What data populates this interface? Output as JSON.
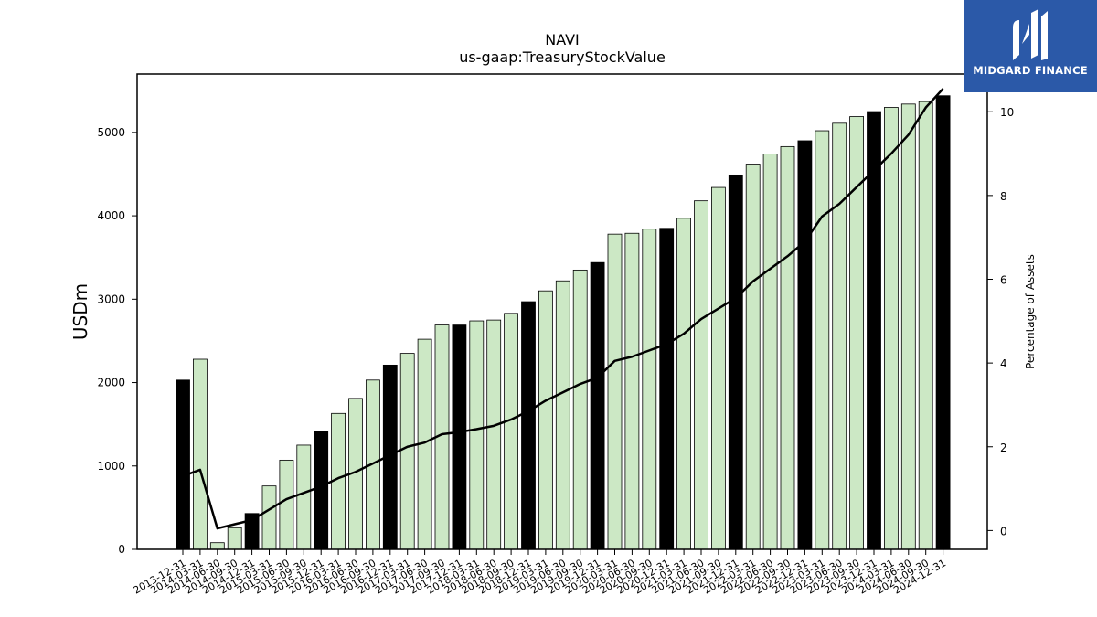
{
  "chart_data": {
    "type": "bar",
    "title": "NAVI",
    "subtitle": "us-gaap:TreasuryStockValue",
    "ylabel": "USDm",
    "y2label": "Percentage of Assets",
    "ylim": [
      0,
      5700
    ],
    "y2lim": [
      -0.45,
      10.9
    ],
    "yticks": [
      0,
      1000,
      2000,
      3000,
      4000,
      5000
    ],
    "y2ticks": [
      0,
      2,
      4,
      6,
      8,
      10
    ],
    "categories": [
      "2013-12-31",
      "2014-03-31",
      "2014-06-30",
      "2014-09-30",
      "2014-12-31",
      "2015-03-31",
      "2015-06-30",
      "2015-09-30",
      "2015-12-31",
      "2016-03-31",
      "2016-06-30",
      "2016-09-30",
      "2016-12-31",
      "2017-03-31",
      "2017-06-30",
      "2017-09-30",
      "2017-12-31",
      "2018-03-31",
      "2018-06-30",
      "2018-09-30",
      "2018-12-31",
      "2019-03-31",
      "2019-06-30",
      "2019-09-30",
      "2019-12-31",
      "2020-03-31",
      "2020-06-30",
      "2020-09-30",
      "2020-12-31",
      "2021-03-31",
      "2021-06-30",
      "2021-09-30",
      "2021-12-31",
      "2022-03-31",
      "2022-06-30",
      "2022-09-30",
      "2022-12-31",
      "2023-03-31",
      "2023-06-30",
      "2023-09-30",
      "2023-12-31",
      "2024-03-31",
      "2024-06-30",
      "2024-09-30",
      "2024-12-31"
    ],
    "series": [
      {
        "values": [
          2030,
          2280,
          80,
          260,
          430,
          760,
          1070,
          1250,
          1420,
          1630,
          1810,
          2030,
          2210,
          2350,
          2520,
          2690,
          2690,
          2740,
          2750,
          2830,
          2970,
          3100,
          3220,
          3350,
          3440,
          3780,
          3790,
          3840,
          3850,
          3970,
          4180,
          4340,
          4490,
          4620,
          4740,
          4830,
          4900,
          5020,
          5110,
          5190,
          5250,
          5300,
          5340,
          5370,
          5440
        ],
        "highlight": [
          true,
          false,
          false,
          false,
          true,
          false,
          false,
          false,
          true,
          false,
          false,
          false,
          true,
          false,
          false,
          false,
          true,
          false,
          false,
          false,
          true,
          false,
          false,
          false,
          true,
          false,
          false,
          false,
          true,
          false,
          false,
          false,
          true,
          false,
          false,
          false,
          true,
          false,
          false,
          false,
          true,
          false,
          false,
          false,
          true
        ]
      },
      {
        "axis": "right",
        "type": "line",
        "values": [
          1.3,
          1.45,
          0.05,
          0.15,
          0.25,
          0.5,
          0.75,
          0.9,
          1.05,
          1.25,
          1.4,
          1.6,
          1.8,
          2.0,
          2.1,
          2.3,
          2.35,
          2.42,
          2.5,
          2.65,
          2.85,
          3.1,
          3.3,
          3.5,
          3.65,
          4.05,
          4.15,
          4.3,
          4.45,
          4.7,
          5.05,
          5.3,
          5.55,
          5.95,
          6.25,
          6.55,
          6.9,
          7.5,
          7.8,
          8.2,
          8.6,
          9.0,
          9.45,
          10.1,
          10.55
        ]
      }
    ],
    "colors": {
      "bar": "#cce8c5",
      "bar_highlight": "#000000",
      "bar_edge": "#000000",
      "line": "#000000"
    },
    "grid": false
  },
  "logo": {
    "text": "MIDGARD FINANCE",
    "background": "#2b59a8"
  }
}
